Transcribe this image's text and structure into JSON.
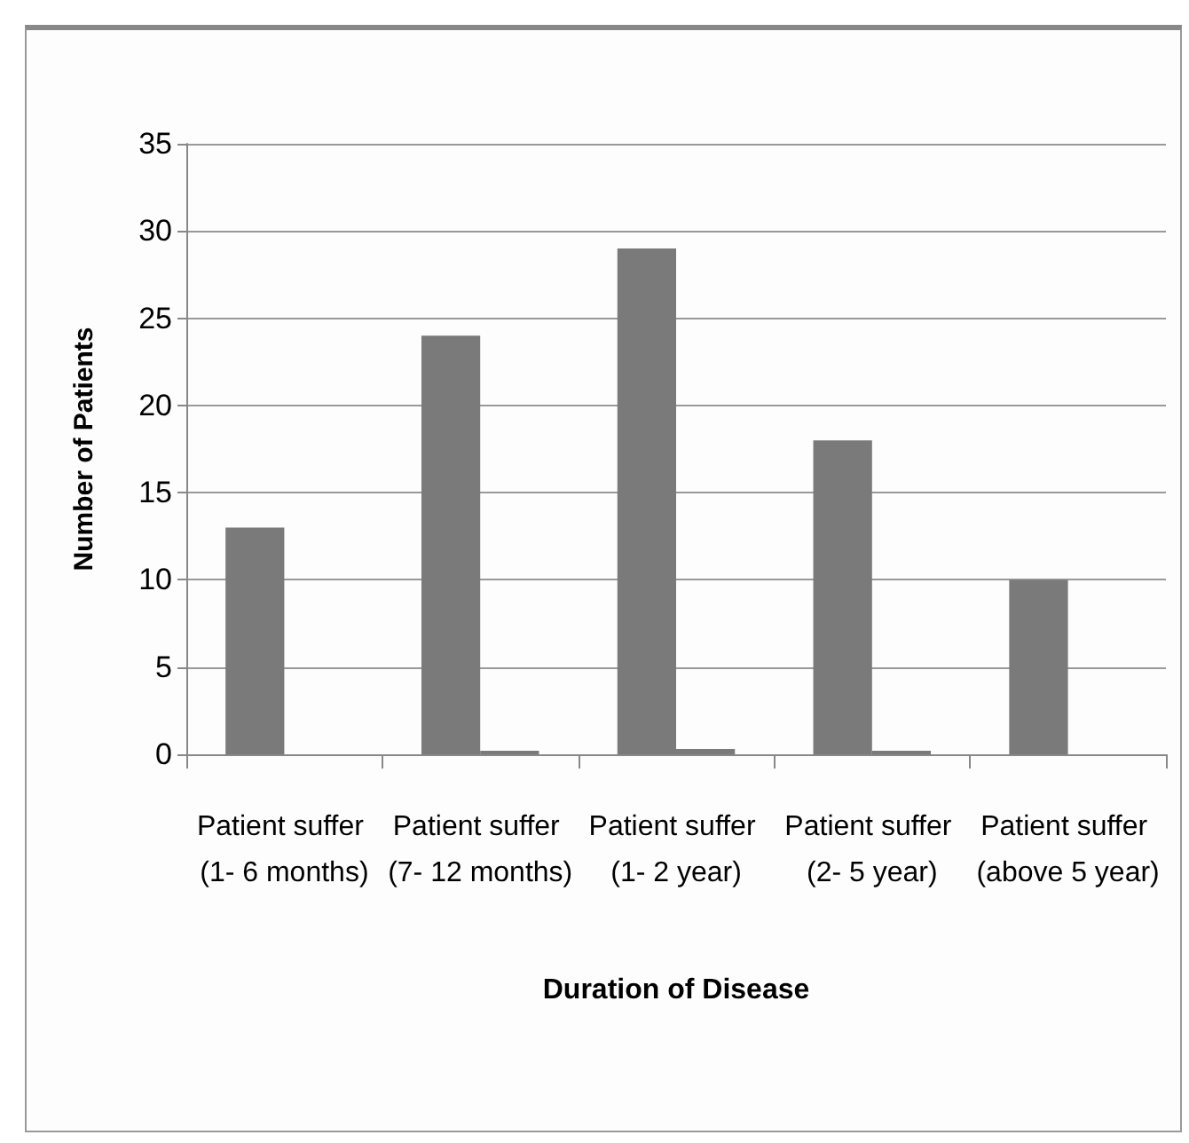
{
  "chart_data": {
    "type": "bar",
    "xlabel": "Duration of Disease",
    "ylabel": "Number of Patients",
    "categories": [
      "Patient suffer (1- 6 months)",
      "Patient suffer (7- 12 months)",
      "Patient suffer (1- 2 year)",
      "Patient suffer (2- 5 year)",
      "Patient suffer (above 5 year)"
    ],
    "series": [
      {
        "color": "#7a7a7a",
        "values": [
          13,
          24,
          29,
          18,
          10
        ]
      },
      {
        "color": "#7a7a7a",
        "values": [
          0,
          0.2,
          0.3,
          0.2,
          0
        ]
      }
    ],
    "ylim": [
      0,
      35
    ],
    "yticks": [
      0,
      5,
      10,
      15,
      20,
      25,
      30,
      35
    ],
    "grid": "y"
  }
}
